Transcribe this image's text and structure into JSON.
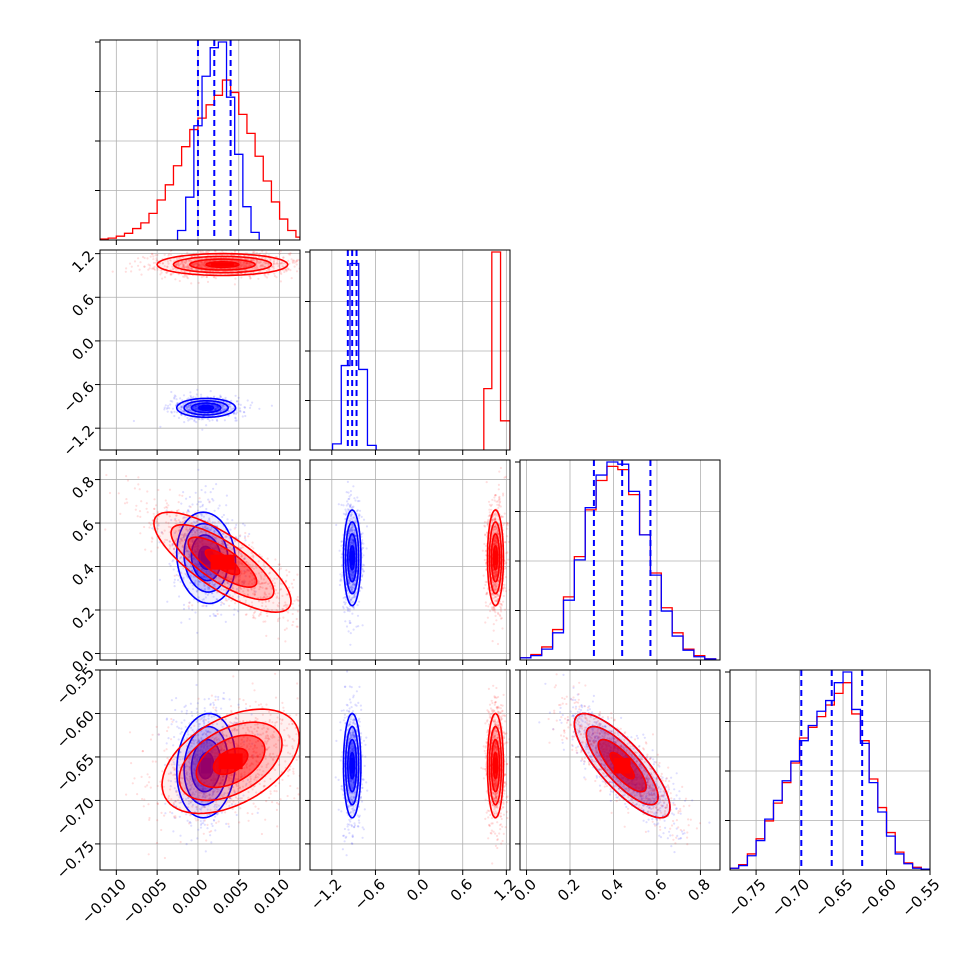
{
  "chart_data": {
    "type": "corner",
    "grid": true,
    "colors": {
      "series_a": "#ff0000",
      "series_b": "#0000ff"
    },
    "params": [
      {
        "range": [
          -0.012,
          0.0125
        ],
        "ticks": [
          -0.01,
          -0.005,
          0.0,
          0.005,
          0.01
        ],
        "tick_labels": [
          "−0.010",
          "−0.005",
          "0.000",
          "0.005",
          "0.010"
        ]
      },
      {
        "range": [
          -1.5,
          1.25
        ],
        "ticks": [
          -1.2,
          -0.6,
          0.0,
          0.6,
          1.2
        ],
        "tick_labels": [
          "−1.2",
          "−0.6",
          "0.0",
          "0.6",
          "1.2"
        ]
      },
      {
        "range": [
          -0.03,
          0.89
        ],
        "ticks": [
          0.0,
          0.2,
          0.4,
          0.6,
          0.8
        ],
        "tick_labels": [
          "0.0",
          "0.2",
          "0.4",
          "0.6",
          "0.8"
        ]
      },
      {
        "range": [
          -0.78,
          -0.55
        ],
        "ticks": [
          -0.75,
          -0.7,
          -0.65,
          -0.6,
          -0.55
        ],
        "tick_labels": [
          "−0.75",
          "−0.70",
          "−0.65",
          "−0.60",
          "−0.55"
        ]
      }
    ],
    "histograms": [
      {
        "param": 0,
        "quantiles": [
          0.0,
          0.002,
          0.004
        ],
        "series_a": {
          "edges": [
            -0.012,
            -0.011,
            -0.01,
            -0.009,
            -0.008,
            -0.007,
            -0.006,
            -0.005,
            -0.004,
            -0.003,
            -0.002,
            -0.001,
            0.0,
            0.001,
            0.002,
            0.003,
            0.004,
            0.005,
            0.006,
            0.007,
            0.008,
            0.009,
            0.01,
            0.011,
            0.012,
            0.0125
          ],
          "counts": [
            1,
            2,
            4,
            7,
            12,
            18,
            28,
            42,
            58,
            78,
            98,
            116,
            128,
            142,
            152,
            168,
            155,
            132,
            112,
            88,
            62,
            40,
            22,
            10,
            3
          ]
        },
        "series_b": {
          "edges": [
            -0.0025,
            -0.0015,
            -0.0005,
            0.0005,
            0.0015,
            0.0025,
            0.0035,
            0.0045,
            0.0055,
            0.0065,
            0.0075
          ],
          "counts": [
            10,
            45,
            120,
            172,
            202,
            208,
            150,
            90,
            35,
            8
          ]
        }
      },
      {
        "param": 1,
        "quantiles": [
          -0.98,
          -0.92,
          -0.86
        ],
        "series_a": {
          "edges": [
            0.89,
            1.0,
            1.12,
            1.25
          ],
          "counts": [
            80,
            258,
            38
          ]
        },
        "series_b": {
          "edges": [
            -1.19,
            -1.07,
            -0.95,
            -0.83,
            -0.71,
            -0.59
          ],
          "counts": [
            8,
            110,
            243,
            105,
            6
          ]
        }
      },
      {
        "param": 2,
        "quantiles": [
          0.31,
          0.44,
          0.57
        ],
        "series_a": {
          "edges": [
            -0.03,
            0.02,
            0.07,
            0.12,
            0.17,
            0.22,
            0.27,
            0.32,
            0.37,
            0.42,
            0.47,
            0.52,
            0.57,
            0.62,
            0.67,
            0.72,
            0.77,
            0.82,
            0.87
          ],
          "counts": [
            2,
            5,
            12,
            28,
            58,
            95,
            138,
            165,
            178,
            175,
            152,
            115,
            80,
            48,
            25,
            10,
            4,
            1
          ]
        },
        "series_b": {
          "edges": [
            -0.03,
            0.02,
            0.07,
            0.12,
            0.17,
            0.22,
            0.27,
            0.32,
            0.37,
            0.42,
            0.47,
            0.52,
            0.57,
            0.62,
            0.67,
            0.72,
            0.77,
            0.82,
            0.87
          ],
          "counts": [
            2,
            4,
            10,
            25,
            55,
            92,
            140,
            170,
            182,
            180,
            155,
            115,
            78,
            45,
            22,
            9,
            3,
            1
          ]
        }
      },
      {
        "param": 3,
        "quantiles": [
          -0.698,
          -0.663,
          -0.628
        ],
        "series_a": {
          "edges": [
            -0.78,
            -0.77,
            -0.76,
            -0.75,
            -0.74,
            -0.73,
            -0.72,
            -0.71,
            -0.7,
            -0.69,
            -0.68,
            -0.67,
            -0.66,
            -0.65,
            -0.64,
            -0.63,
            -0.62,
            -0.61,
            -0.6,
            -0.59,
            -0.58,
            -0.57,
            -0.56,
            -0.55
          ],
          "counts": [
            2,
            6,
            18,
            35,
            55,
            75,
            98,
            120,
            148,
            160,
            172,
            185,
            198,
            210,
            175,
            145,
            102,
            70,
            42,
            20,
            8,
            3,
            1
          ]
        },
        "series_b": {
          "edges": [
            -0.78,
            -0.77,
            -0.76,
            -0.75,
            -0.74,
            -0.73,
            -0.72,
            -0.71,
            -0.7,
            -0.69,
            -0.68,
            -0.67,
            -0.66,
            -0.65,
            -0.64,
            -0.63,
            -0.62,
            -0.61,
            -0.6,
            -0.59,
            -0.58,
            -0.57,
            -0.56,
            -0.55
          ],
          "counts": [
            2,
            5,
            16,
            33,
            57,
            78,
            100,
            122,
            145,
            162,
            178,
            190,
            210,
            222,
            180,
            142,
            98,
            65,
            38,
            18,
            7,
            2,
            1
          ]
        }
      }
    ],
    "contours": [
      {
        "x": 0,
        "y": 1,
        "series_a": {
          "mean": [
            0.003,
            1.05
          ],
          "sd": [
            0.004,
            0.075
          ],
          "rho": 0.0
        },
        "series_b": {
          "mean": [
            0.001,
            -0.92
          ],
          "sd": [
            0.0018,
            0.065
          ],
          "rho": 0.0
        }
      },
      {
        "x": 0,
        "y": 2,
        "series_a": {
          "mean": [
            0.003,
            0.42
          ],
          "sd": [
            0.0042,
            0.115
          ],
          "rho": -0.78
        },
        "series_b": {
          "mean": [
            0.001,
            0.44
          ],
          "sd": [
            0.0018,
            0.105
          ],
          "rho": -0.1
        }
      },
      {
        "x": 1,
        "y": 2,
        "series_a": {
          "mean": [
            1.05,
            0.44
          ],
          "sd": [
            0.055,
            0.11
          ],
          "rho": 0.0
        },
        "series_b": {
          "mean": [
            -0.92,
            0.44
          ],
          "sd": [
            0.06,
            0.11
          ],
          "rho": 0.0
        }
      },
      {
        "x": 0,
        "y": 3,
        "series_a": {
          "mean": [
            0.004,
            -0.655
          ],
          "sd": [
            0.0042,
            0.03
          ],
          "rho": 0.45
        },
        "series_b": {
          "mean": [
            0.001,
            -0.66
          ],
          "sd": [
            0.0018,
            0.03
          ],
          "rho": 0.1
        }
      },
      {
        "x": 1,
        "y": 3,
        "series_a": {
          "mean": [
            1.05,
            -0.66
          ],
          "sd": [
            0.055,
            0.03
          ],
          "rho": 0.0
        },
        "series_b": {
          "mean": [
            -0.92,
            -0.66
          ],
          "sd": [
            0.06,
            0.03
          ],
          "rho": 0.0
        }
      },
      {
        "x": 2,
        "y": 3,
        "series_a": {
          "mean": [
            0.44,
            -0.66
          ],
          "sd": [
            0.11,
            0.03
          ],
          "rho": -0.8
        },
        "series_b": {
          "mean": [
            0.44,
            -0.66
          ],
          "sd": [
            0.11,
            0.03
          ],
          "rho": -0.8
        }
      }
    ],
    "contour_levels_sigma": [
      0.5,
      1.0,
      1.5,
      2.0
    ]
  }
}
